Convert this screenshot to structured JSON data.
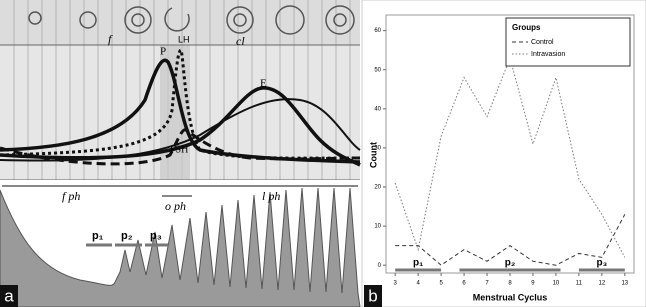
{
  "panel_a": {
    "panel_label": "a",
    "labels": {
      "follicle": "f",
      "lh": "LH",
      "corpus_luteum": "cl",
      "progesterone": "P",
      "estrogen": "E",
      "fsh": "FSH",
      "follicular_phase": "f ph",
      "ovulatory_phase": "o ph",
      "luteal_phase": "l ph"
    },
    "phases": [
      "p₁",
      "p₂",
      "p₃"
    ]
  },
  "chart_data": {
    "type": "line",
    "panel_label": "b",
    "x_label": "Menstrual Cyclus",
    "y_label": "Count",
    "legend_title": "Groups",
    "legend": "upper right",
    "x": [
      3,
      4,
      5,
      6,
      7,
      8,
      9,
      10,
      11,
      12,
      13
    ],
    "series": [
      {
        "name": "Control",
        "color": "#333333",
        "dash": "4,3",
        "values": [
          5,
          5,
          0,
          4,
          1,
          5,
          1,
          0,
          3,
          2,
          13
        ]
      },
      {
        "name": "Intravasion",
        "color": "#777777",
        "dash": "1.5,2",
        "values": [
          21,
          4,
          33,
          48,
          38,
          53,
          31,
          48,
          22,
          13,
          2
        ]
      }
    ],
    "xlim": [
      2.6,
      13.4
    ],
    "ylim": [
      -2,
      64
    ],
    "xticks": [
      3,
      4,
      5,
      6,
      7,
      8,
      9,
      10,
      11,
      12,
      13
    ],
    "yticks": [
      0,
      10,
      20,
      30,
      40,
      50,
      60
    ],
    "phases": [
      "p₁",
      "p₂",
      "p₃"
    ]
  }
}
